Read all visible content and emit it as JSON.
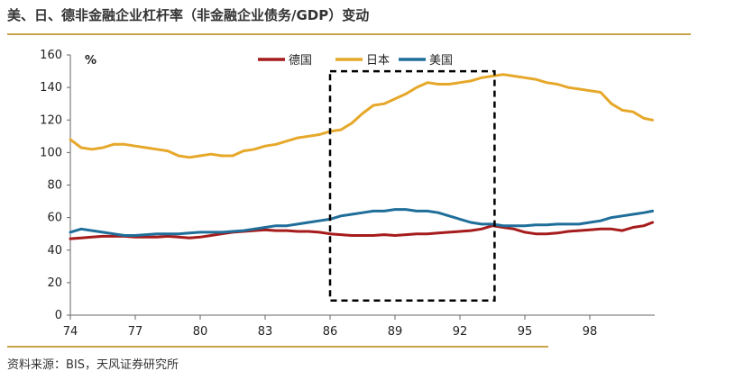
{
  "title": "美、日、德非金融企业杠杆率（非金融企业债务/GDP）变动",
  "source": "资料来源：BIS，天风证券研究所",
  "chart_data": {
    "type": "line",
    "title": "美、日、德非金融企业杠杆率（非金融企业债务/GDP）变动",
    "ylabel": "%",
    "ylim": [
      0,
      160
    ],
    "yticks": [
      0,
      20,
      40,
      60,
      80,
      100,
      120,
      140,
      160
    ],
    "xlim": [
      1974,
      2001
    ],
    "xticks": [
      1974,
      1977,
      1980,
      1983,
      1986,
      1989,
      1992,
      1995,
      1998
    ],
    "xtick_labels": [
      "74",
      "77",
      "80",
      "83",
      "86",
      "89",
      "92",
      "95",
      "98"
    ],
    "grid": false,
    "legend": "top-center",
    "annotation": {
      "type": "dashed-box",
      "x": [
        1986,
        1993.6
      ],
      "y": [
        9,
        150
      ]
    },
    "series": [
      {
        "name": "德国",
        "color": "#a61b1b",
        "x": [
          1974,
          1974.5,
          1975,
          1975.5,
          1976,
          1976.5,
          1977,
          1977.5,
          1978,
          1978.5,
          1979,
          1979.5,
          1980,
          1980.5,
          1981,
          1981.5,
          1982,
          1982.5,
          1983,
          1983.5,
          1984,
          1984.5,
          1985,
          1985.5,
          1986,
          1986.5,
          1987,
          1987.5,
          1988,
          1988.5,
          1989,
          1989.5,
          1990,
          1990.5,
          1991,
          1991.5,
          1992,
          1992.5,
          1993,
          1993.5,
          1994,
          1994.5,
          1995,
          1995.5,
          1996,
          1996.5,
          1997,
          1997.5,
          1998,
          1998.5,
          1999,
          1999.5,
          2000,
          2000.5,
          2000.9
        ],
        "values": [
          47,
          47.5,
          48,
          48.5,
          48.5,
          48.5,
          48,
          48,
          48,
          48.5,
          48,
          47.5,
          48,
          49,
          50,
          51,
          51.5,
          52,
          52.5,
          52,
          52,
          51.5,
          51.5,
          51,
          50,
          49.5,
          49,
          49,
          49,
          49.5,
          49,
          49.5,
          50,
          50,
          50.5,
          51,
          51.5,
          52,
          53,
          55,
          54,
          53,
          51,
          50,
          50,
          50.5,
          51.5,
          52,
          52.5,
          53,
          53,
          52,
          54,
          55,
          57
        ]
      },
      {
        "name": "日本",
        "color": "#e6a82a",
        "x": [
          1974,
          1974.5,
          1975,
          1975.5,
          1976,
          1976.5,
          1977,
          1977.5,
          1978,
          1978.5,
          1979,
          1979.5,
          1980,
          1980.5,
          1981,
          1981.5,
          1982,
          1982.5,
          1983,
          1983.5,
          1984,
          1984.5,
          1985,
          1985.5,
          1986,
          1986.5,
          1987,
          1987.5,
          1988,
          1988.5,
          1989,
          1989.5,
          1990,
          1990.5,
          1991,
          1991.5,
          1992,
          1992.5,
          1993,
          1993.5,
          1994,
          1994.5,
          1995,
          1995.5,
          1996,
          1996.5,
          1997,
          1997.5,
          1998,
          1998.5,
          1999,
          1999.5,
          2000,
          2000.5,
          2000.9
        ],
        "values": [
          108,
          103,
          102,
          103,
          105,
          105,
          104,
          103,
          102,
          101,
          98,
          97,
          98,
          99,
          98,
          98,
          101,
          102,
          104,
          105,
          107,
          109,
          110,
          111,
          113,
          114,
          118,
          124,
          129,
          130,
          133,
          136,
          140,
          143,
          142,
          142,
          143,
          144,
          146,
          147,
          148,
          147,
          146,
          145,
          143,
          142,
          140,
          139,
          138,
          137,
          130,
          126,
          125,
          121,
          120
        ]
      },
      {
        "name": "美国",
        "color": "#1f6e9a",
        "x": [
          1974,
          1974.5,
          1975,
          1975.5,
          1976,
          1976.5,
          1977,
          1977.5,
          1978,
          1978.5,
          1979,
          1979.5,
          1980,
          1980.5,
          1981,
          1981.5,
          1982,
          1982.5,
          1983,
          1983.5,
          1984,
          1984.5,
          1985,
          1985.5,
          1986,
          1986.5,
          1987,
          1987.5,
          1988,
          1988.5,
          1989,
          1989.5,
          1990,
          1990.5,
          1991,
          1991.5,
          1992,
          1992.5,
          1993,
          1993.5,
          1994,
          1994.5,
          1995,
          1995.5,
          1996,
          1996.5,
          1997,
          1997.5,
          1998,
          1998.5,
          1999,
          1999.5,
          2000,
          2000.5,
          2000.9
        ],
        "values": [
          51,
          53,
          52,
          51,
          50,
          49,
          49,
          49.5,
          50,
          50,
          50,
          50.5,
          51,
          51,
          51,
          51.5,
          52,
          53,
          54,
          55,
          55,
          56,
          57,
          58,
          59,
          61,
          62,
          63,
          64,
          64,
          65,
          65,
          64,
          64,
          63,
          61,
          59,
          57,
          56,
          56,
          55,
          55,
          55,
          55.5,
          55.5,
          56,
          56,
          56,
          57,
          58,
          60,
          61,
          62,
          63,
          64
        ]
      }
    ]
  }
}
